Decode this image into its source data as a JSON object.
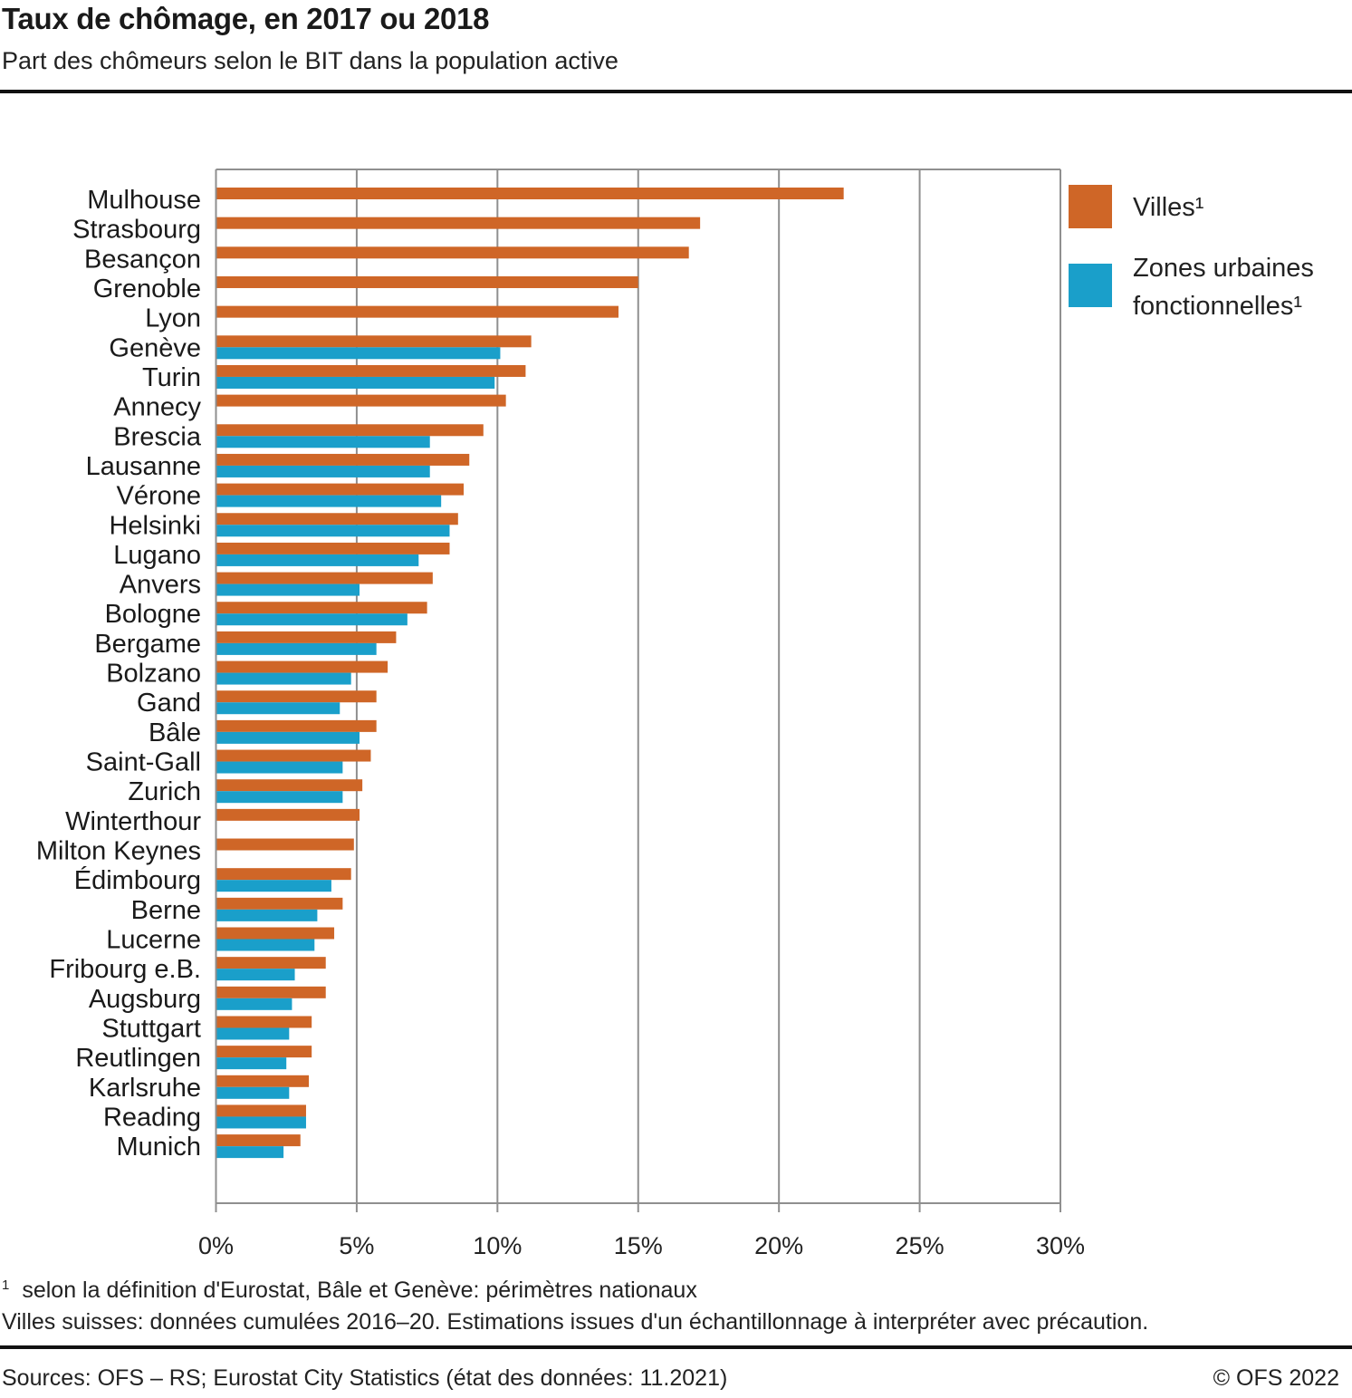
{
  "header": {
    "title": "Taux de chômage, en 2017 ou 2018",
    "subtitle": "Part des chômeurs selon le BIT dans la population active"
  },
  "colors": {
    "villes": "#cf6627",
    "zones": "#1a9fca",
    "grid": "#8f8f8f",
    "text": "#1a1a1a"
  },
  "legend": {
    "items": [
      {
        "label": "Villes¹",
        "color": "#cf6627"
      },
      {
        "label": "Zones urbaines fonctionnelles¹",
        "color": "#1a9fca"
      }
    ]
  },
  "chart_data": {
    "type": "bar",
    "orientation": "horizontal",
    "title": "Taux de chômage, en 2017 ou 2018",
    "subtitle": "Part des chômeurs selon le BIT dans la population active",
    "xlabel": "",
    "ylabel": "",
    "xlim": [
      0,
      30
    ],
    "x_ticks": [
      0,
      5,
      10,
      15,
      20,
      25,
      30
    ],
    "x_tick_labels": [
      "0%",
      "5%",
      "10%",
      "15%",
      "20%",
      "25%",
      "30%"
    ],
    "grid": true,
    "legend_position": "right",
    "categories": [
      "Mulhouse",
      "Strasbourg",
      "Besançon",
      "Grenoble",
      "Lyon",
      "Genève",
      "Turin",
      "Annecy",
      "Brescia",
      "Lausanne",
      "Vérone",
      "Helsinki",
      "Lugano",
      "Anvers",
      "Bologne",
      "Bergame",
      "Bolzano",
      "Gand",
      "Bâle",
      "Saint-Gall",
      "Zurich",
      "Winterthour",
      "Milton Keynes",
      "Édimbourg",
      "Berne",
      "Lucerne",
      "Fribourg e.B.",
      "Augsburg",
      "Stuttgart",
      "Reutlingen",
      "Karlsruhe",
      "Reading",
      "Munich"
    ],
    "series": [
      {
        "name": "Villes¹",
        "color": "#cf6627",
        "values": [
          22.3,
          17.2,
          16.8,
          15.0,
          14.3,
          11.2,
          11.0,
          10.3,
          9.5,
          9.0,
          8.8,
          8.6,
          8.3,
          7.7,
          7.5,
          6.4,
          6.1,
          5.7,
          5.7,
          5.5,
          5.2,
          5.1,
          4.9,
          4.8,
          4.5,
          4.2,
          3.9,
          3.9,
          3.4,
          3.4,
          3.3,
          3.2,
          3.0
        ]
      },
      {
        "name": "Zones urbaines fonctionnelles¹",
        "color": "#1a9fca",
        "values": [
          null,
          null,
          null,
          null,
          null,
          10.1,
          9.9,
          null,
          7.6,
          7.6,
          8.0,
          8.3,
          7.2,
          5.1,
          6.8,
          5.7,
          4.8,
          4.4,
          5.1,
          4.5,
          4.5,
          null,
          null,
          4.1,
          3.6,
          3.5,
          2.8,
          2.7,
          2.6,
          2.5,
          2.6,
          3.2,
          2.4
        ]
      }
    ]
  },
  "footer": {
    "note_marker": "1",
    "note1": "selon la définition d'Eurostat, Bâle et Genève: périmètres nationaux",
    "note2": "Villes suisses: données cumulées 2016–20. Estimations issues d'un échantillonnage à interpréter avec précaution.",
    "source": "Sources: OFS – RS; Eurostat City Statistics (état des données: 11.2021)",
    "copyright": "© OFS 2022"
  }
}
